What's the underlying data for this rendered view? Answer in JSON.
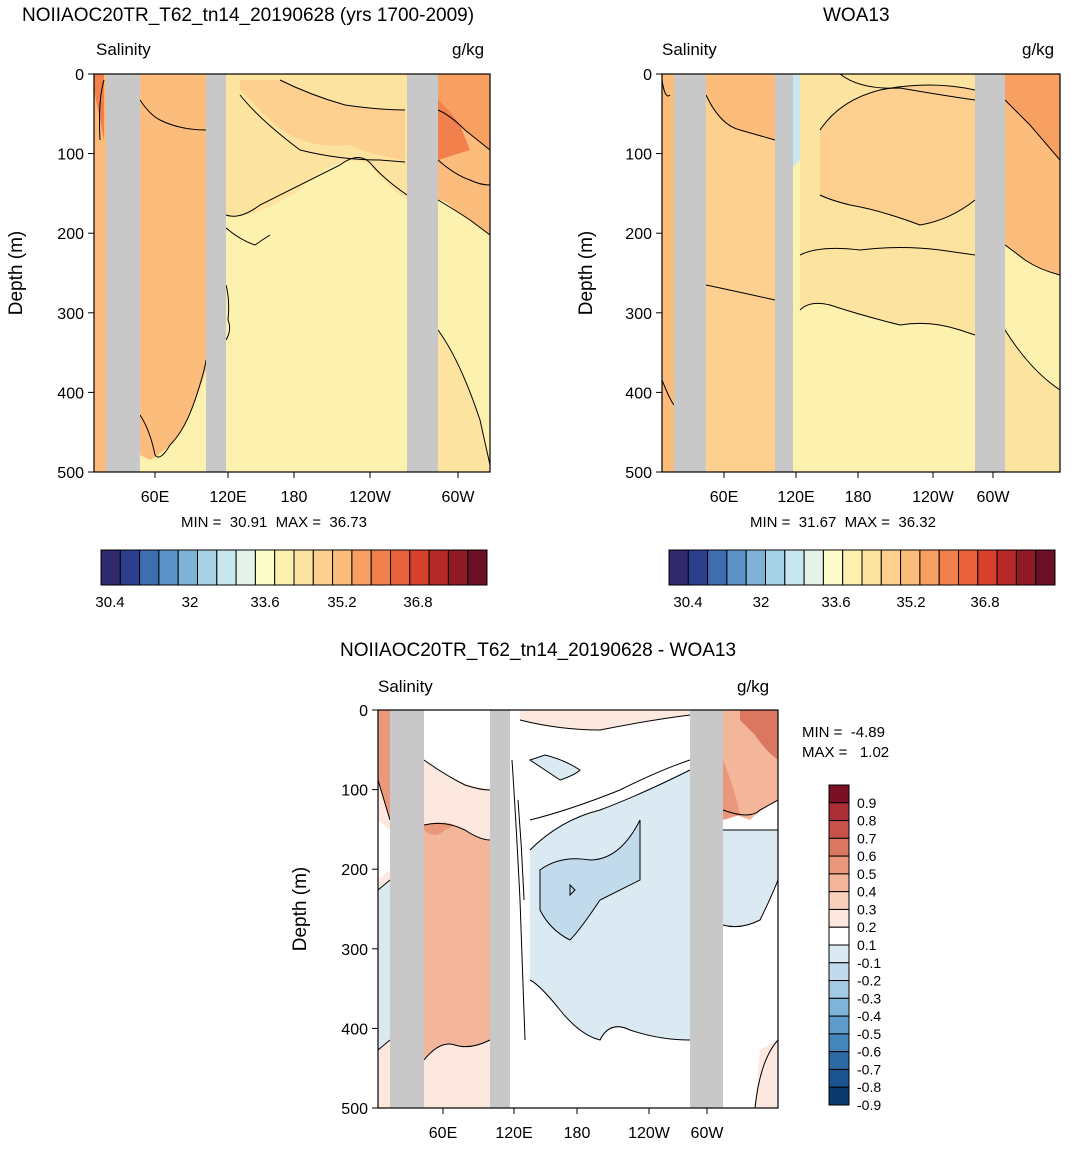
{
  "panels": [
    {
      "title": "NOIIAOC20TR_T62_tn14_20190628 (yrs 1700-2009)",
      "left_label": "Salinity",
      "right_label": "g/kg",
      "min_max": "MIN =  30.91  MAX =  36.73"
    },
    {
      "title": "WOA13",
      "left_label": "Salinity",
      "right_label": "g/kg",
      "min_max": "MIN =  31.67  MAX =  36.32"
    },
    {
      "title": "NOIIAOC20TR_T62_tn14_20190628 - WOA13",
      "left_label": "Salinity",
      "right_label": "g/kg",
      "min_line": "MIN =  -4.89",
      "max_line": "MAX =   1.02"
    }
  ],
  "colors": {
    "land": "#c8c8c8",
    "salinity_levels": [
      "#2e2a6b",
      "#2c3f8f",
      "#3e6db0",
      "#5b93c6",
      "#7fb3d6",
      "#a8d3e6",
      "#c8e6ef",
      "#e3f3e8",
      "#fdfdc9",
      "#fdf1b0",
      "#fde3a0",
      "#fdd090",
      "#fcbc7b",
      "#f8a062",
      "#f2804c",
      "#e8613c",
      "#d7402c",
      "#b52a26",
      "#8e1a26",
      "#6a0f25"
    ],
    "diff_levels": [
      "#0b3a6e",
      "#1a5390",
      "#2b6aa5",
      "#4485bb",
      "#5f9ccb",
      "#80b4d8",
      "#a3c9e3",
      "#c2dbec",
      "#dbe9f3",
      "#ffffff",
      "#fce8df",
      "#f8d0bb",
      "#f3b69a",
      "#ea987b",
      "#db7661",
      "#c75249",
      "#ab2f35",
      "#7a0f26"
    ]
  },
  "chart_data": [
    {
      "type": "heatmap",
      "title": "NOIIAOC20TR_T62_tn14_20190628 (yrs 1700-2009)",
      "ylabel": "Depth (m)",
      "x_ticks": [
        "60E",
        "120E",
        "180",
        "120W",
        "60W"
      ],
      "y_ticks": [
        "0",
        "100",
        "200",
        "300",
        "400",
        "500"
      ],
      "ylim": [
        500,
        0
      ],
      "min": 30.91,
      "max": 36.73,
      "colorbar_labels": [
        "30.4",
        "32",
        "33.6",
        "35.2",
        "36.8"
      ]
    },
    {
      "type": "heatmap",
      "title": "WOA13",
      "ylabel": "Depth (m)",
      "x_ticks": [
        "60E",
        "120E",
        "180",
        "120W",
        "60W"
      ],
      "y_ticks": [
        "0",
        "100",
        "200",
        "300",
        "400",
        "500"
      ],
      "ylim": [
        500,
        0
      ],
      "min": 31.67,
      "max": 36.32,
      "colorbar_labels": [
        "30.4",
        "32",
        "33.6",
        "35.2",
        "36.8"
      ]
    },
    {
      "type": "heatmap",
      "title": "NOIIAOC20TR_T62_tn14_20190628 - WOA13",
      "ylabel": "Depth (m)",
      "x_ticks": [
        "60E",
        "120E",
        "180",
        "120W",
        "60W"
      ],
      "y_ticks": [
        "0",
        "100",
        "200",
        "300",
        "400",
        "500"
      ],
      "ylim": [
        500,
        0
      ],
      "min": -4.89,
      "max": 1.02,
      "colorbar_labels": [
        "0.9",
        "0.8",
        "0.7",
        "0.6",
        "0.5",
        "0.4",
        "0.3",
        "0.2",
        "0.1",
        "-0.1",
        "-0.2",
        "-0.3",
        "-0.4",
        "-0.5",
        "-0.6",
        "-0.7",
        "-0.8",
        "-0.9"
      ]
    }
  ]
}
